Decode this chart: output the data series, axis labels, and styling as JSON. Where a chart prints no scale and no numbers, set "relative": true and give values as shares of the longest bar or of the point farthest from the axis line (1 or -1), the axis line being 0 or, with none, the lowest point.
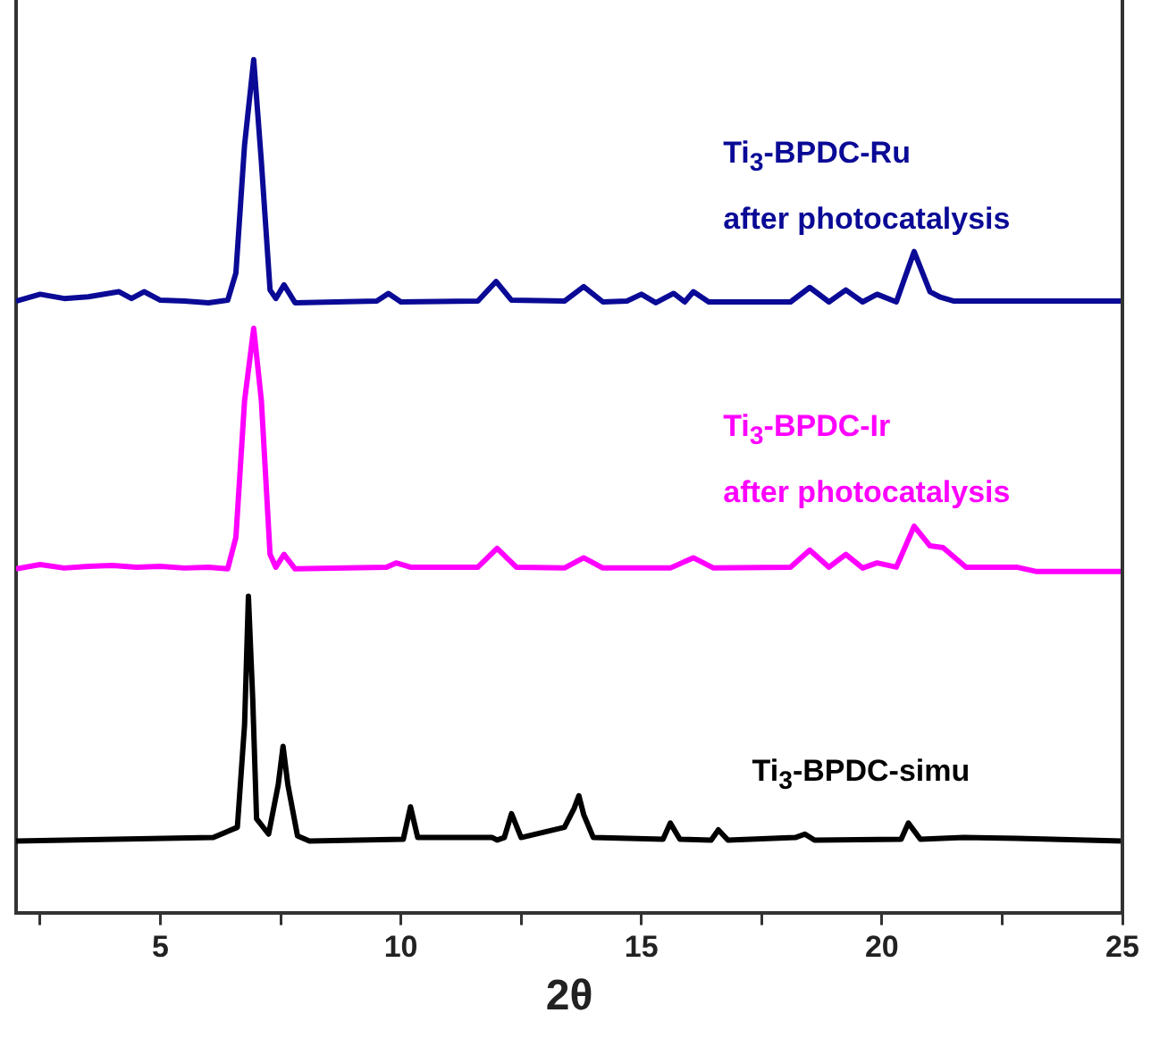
{
  "chart_data": {
    "type": "line",
    "xlabel": "2θ",
    "relative": true,
    "legend": false,
    "grid": false,
    "marker": "none",
    "xlim": [
      2,
      25
    ],
    "xticks": [
      {
        "value": 2.5,
        "label": null
      },
      5,
      {
        "value": 7.5,
        "label": null
      },
      10,
      {
        "value": 12.5,
        "label": null
      },
      15,
      {
        "value": 17.5,
        "label": null
      },
      20,
      {
        "value": 22.5,
        "label": null
      },
      25
    ],
    "series": [
      {
        "name": "Ti$_{3}$-BPDC-Ru\nafter photocatalysis",
        "color": "#0a0a96",
        "x": [
          2,
          2.5,
          3,
          3.5,
          4.14,
          4.4,
          4.66,
          5,
          5.5,
          6,
          6.4,
          6.57,
          6.75,
          6.94,
          7.1,
          7.28,
          7.4,
          7.57,
          7.8,
          9.5,
          9.74,
          10,
          11.6,
          11.98,
          12.3,
          13.4,
          13.8,
          14.2,
          14.7,
          15.0,
          15.3,
          15.67,
          15.9,
          16.08,
          16.4,
          18.1,
          18.5,
          18.9,
          19.25,
          19.6,
          19.9,
          20.3,
          20.67,
          21.0,
          21.2,
          21.5,
          25
        ],
        "values": [
          0.717,
          0.725,
          0.72,
          0.722,
          0.728,
          0.72,
          0.728,
          0.718,
          0.717,
          0.715,
          0.718,
          0.75,
          0.9,
          1,
          0.88,
          0.73,
          0.72,
          0.736,
          0.715,
          0.717,
          0.726,
          0.716,
          0.717,
          0.74,
          0.718,
          0.717,
          0.734,
          0.716,
          0.717,
          0.725,
          0.715,
          0.726,
          0.716,
          0.728,
          0.716,
          0.716,
          0.733,
          0.716,
          0.73,
          0.716,
          0.725,
          0.716,
          0.775,
          0.728,
          0.722,
          0.717,
          0.717
        ]
      },
      {
        "name": "Ti$_{3}$-BPDC-Ir\nafter photocatalysis",
        "color": "#ff00ff",
        "x": [
          2,
          2.5,
          3,
          3.5,
          4,
          4.5,
          5,
          5.5,
          6,
          6.4,
          6.57,
          6.75,
          6.94,
          7.1,
          7.28,
          7.4,
          7.57,
          7.8,
          9.7,
          9.9,
          10.2,
          11.6,
          12.0,
          12.4,
          13.4,
          13.8,
          14.2,
          15.6,
          16.08,
          16.5,
          18.1,
          18.5,
          18.9,
          19.25,
          19.6,
          19.9,
          20.3,
          20.67,
          21.0,
          21.27,
          21.75,
          22.8,
          23.2,
          25
        ],
        "values": [
          0.403,
          0.408,
          0.404,
          0.406,
          0.407,
          0.405,
          0.406,
          0.404,
          0.405,
          0.403,
          0.44,
          0.6,
          0.685,
          0.6,
          0.42,
          0.405,
          0.42,
          0.403,
          0.405,
          0.41,
          0.405,
          0.405,
          0.427,
          0.405,
          0.404,
          0.416,
          0.404,
          0.404,
          0.416,
          0.404,
          0.405,
          0.425,
          0.405,
          0.42,
          0.404,
          0.41,
          0.405,
          0.453,
          0.43,
          0.428,
          0.405,
          0.405,
          0.4,
          0.4
        ]
      },
      {
        "name": "Ti$_{3}$-BPDC-simu",
        "color": "#000000",
        "x": [
          2,
          6.1,
          6.6,
          6.75,
          6.83,
          6.92,
          7.0,
          7.25,
          7.45,
          7.55,
          7.65,
          7.85,
          8.1,
          10.05,
          10.2,
          10.35,
          11.9,
          12.0,
          12.15,
          12.3,
          12.5,
          13.4,
          13.6,
          13.7,
          13.8,
          14.0,
          15.45,
          15.6,
          15.8,
          16.45,
          16.6,
          16.8,
          18.2,
          18.4,
          18.6,
          20.4,
          20.55,
          20.8,
          21.7,
          22.8,
          25
        ],
        "values": [
          0.084,
          0.088,
          0.1,
          0.22,
          0.371,
          0.25,
          0.11,
          0.092,
          0.15,
          0.195,
          0.15,
          0.09,
          0.084,
          0.086,
          0.124,
          0.088,
          0.088,
          0.085,
          0.088,
          0.116,
          0.088,
          0.1,
          0.122,
          0.137,
          0.115,
          0.088,
          0.086,
          0.105,
          0.086,
          0.085,
          0.097,
          0.085,
          0.088,
          0.092,
          0.085,
          0.086,
          0.105,
          0.086,
          0.088,
          0.087,
          0.084
        ]
      }
    ]
  }
}
